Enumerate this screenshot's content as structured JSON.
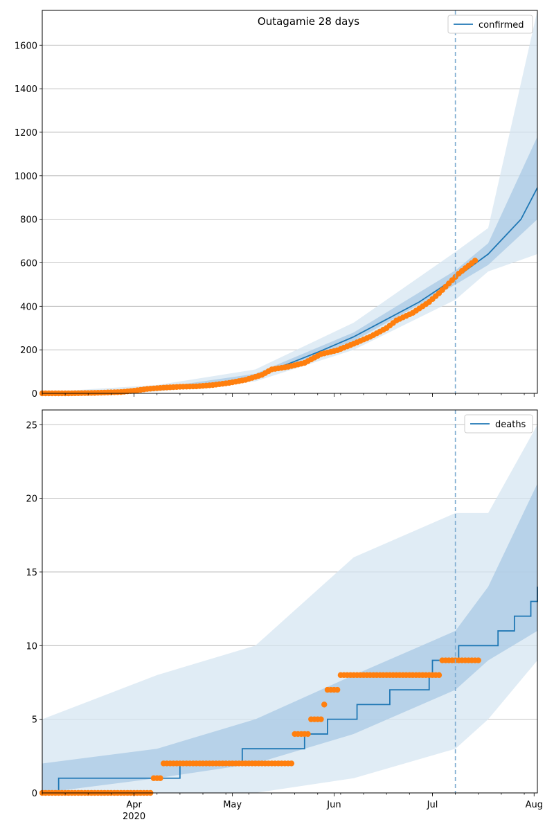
{
  "chart_data": [
    {
      "type": "line",
      "title": "Outagamie 28 days",
      "legend": {
        "label": "confirmed",
        "placement": "top-right"
      },
      "x_start": "2020-03-04",
      "x_end": "2020-08-02",
      "xlim": [
        "2020-03-04",
        "2020-08-02"
      ],
      "ylim": [
        0,
        1760
      ],
      "yticks": [
        0,
        200,
        400,
        600,
        800,
        1000,
        1200,
        1400,
        1600
      ],
      "grid": "horizontal",
      "forecast_start": "2020-07-08",
      "model_median": [
        [
          "2020-03-04",
          0
        ],
        [
          "2020-03-19",
          3
        ],
        [
          "2020-03-29",
          10
        ],
        [
          "2020-04-08",
          20
        ],
        [
          "2020-04-18",
          30
        ],
        [
          "2020-04-28",
          50
        ],
        [
          "2020-05-08",
          80
        ],
        [
          "2020-05-18",
          135
        ],
        [
          "2020-05-28",
          195
        ],
        [
          "2020-06-07",
          260
        ],
        [
          "2020-06-17",
          340
        ],
        [
          "2020-06-27",
          420
        ],
        [
          "2020-07-08",
          530
        ],
        [
          "2020-07-18",
          640
        ],
        [
          "2020-07-28",
          800
        ],
        [
          "2020-08-02",
          945
        ]
      ],
      "band_inner": [
        [
          "2020-03-04",
          0,
          0
        ],
        [
          "2020-04-08",
          15,
          25
        ],
        [
          "2020-05-08",
          70,
          90
        ],
        [
          "2020-06-07",
          240,
          280
        ],
        [
          "2020-07-08",
          500,
          565
        ],
        [
          "2020-07-18",
          590,
          690
        ],
        [
          "2020-08-02",
          800,
          1180
        ]
      ],
      "band_outer": [
        [
          "2020-03-04",
          0,
          5
        ],
        [
          "2020-04-08",
          8,
          38
        ],
        [
          "2020-05-08",
          55,
          110
        ],
        [
          "2020-06-07",
          200,
          325
        ],
        [
          "2020-07-08",
          430,
          650
        ],
        [
          "2020-07-18",
          560,
          760
        ],
        [
          "2020-08-02",
          640,
          1760
        ]
      ],
      "observed": [
        [
          "2020-03-04",
          0
        ],
        [
          "2020-03-12",
          0
        ],
        [
          "2020-03-20",
          2
        ],
        [
          "2020-03-28",
          6
        ],
        [
          "2020-04-01",
          12
        ],
        [
          "2020-04-05",
          20
        ],
        [
          "2020-04-10",
          26
        ],
        [
          "2020-04-15",
          30
        ],
        [
          "2020-04-20",
          32
        ],
        [
          "2020-04-25",
          38
        ],
        [
          "2020-04-30",
          48
        ],
        [
          "2020-05-05",
          62
        ],
        [
          "2020-05-10",
          85
        ],
        [
          "2020-05-13",
          110
        ],
        [
          "2020-05-18",
          122
        ],
        [
          "2020-05-23",
          140
        ],
        [
          "2020-05-28",
          180
        ],
        [
          "2020-06-02",
          198
        ],
        [
          "2020-06-07",
          228
        ],
        [
          "2020-06-12",
          260
        ],
        [
          "2020-06-17",
          300
        ],
        [
          "2020-06-20",
          335
        ],
        [
          "2020-06-25",
          370
        ],
        [
          "2020-06-30",
          420
        ],
        [
          "2020-07-03",
          460
        ],
        [
          "2020-07-06",
          505
        ],
        [
          "2020-07-09",
          550
        ],
        [
          "2020-07-11",
          575
        ],
        [
          "2020-07-14",
          610
        ]
      ]
    },
    {
      "type": "line",
      "title": "",
      "legend": {
        "label": "deaths",
        "placement": "top-right"
      },
      "x_start": "2020-03-04",
      "x_end": "2020-08-02",
      "xlim": [
        "2020-03-04",
        "2020-08-02"
      ],
      "ylim": [
        0,
        26
      ],
      "yticks": [
        0,
        5,
        10,
        15,
        20,
        25
      ],
      "grid": "horizontal",
      "forecast_start": "2020-07-08",
      "model_step": [
        [
          "2020-03-04",
          0
        ],
        [
          "2020-03-09",
          1
        ],
        [
          "2020-04-15",
          2
        ],
        [
          "2020-05-04",
          3
        ],
        [
          "2020-05-23",
          4
        ],
        [
          "2020-05-30",
          5
        ],
        [
          "2020-06-08",
          6
        ],
        [
          "2020-06-18",
          7
        ],
        [
          "2020-06-30",
          8
        ],
        [
          "2020-07-01",
          9
        ],
        [
          "2020-07-09",
          10
        ],
        [
          "2020-07-16",
          10
        ],
        [
          "2020-07-21",
          11
        ],
        [
          "2020-07-26",
          12
        ],
        [
          "2020-07-31",
          13
        ],
        [
          "2020-08-02",
          14
        ]
      ],
      "band_inner": [
        [
          "2020-03-04",
          0,
          2
        ],
        [
          "2020-04-08",
          1,
          3
        ],
        [
          "2020-05-08",
          2,
          5
        ],
        [
          "2020-06-07",
          4,
          8
        ],
        [
          "2020-07-08",
          7,
          11
        ],
        [
          "2020-07-18",
          9,
          14
        ],
        [
          "2020-08-02",
          11,
          21
        ]
      ],
      "band_outer": [
        [
          "2020-03-04",
          0,
          5
        ],
        [
          "2020-04-08",
          0,
          8
        ],
        [
          "2020-05-08",
          0,
          10
        ],
        [
          "2020-06-07",
          1,
          16
        ],
        [
          "2020-07-08",
          3,
          19
        ],
        [
          "2020-07-18",
          5,
          19
        ],
        [
          "2020-08-02",
          9,
          25
        ]
      ],
      "observed": [
        [
          "2020-03-04",
          0
        ],
        [
          "2020-04-06",
          0
        ],
        [
          "2020-04-07",
          1
        ],
        [
          "2020-04-10",
          2
        ],
        [
          "2020-05-20",
          4
        ],
        [
          "2020-05-25",
          5
        ],
        [
          "2020-05-29",
          6
        ],
        [
          "2020-05-30",
          7
        ],
        [
          "2020-06-03",
          8
        ],
        [
          "2020-07-04",
          9
        ],
        [
          "2020-07-15",
          9
        ]
      ]
    }
  ],
  "x_axis": {
    "ticks": [
      {
        "date": "2020-04-01",
        "label": "Apr",
        "sublabel": "2020"
      },
      {
        "date": "2020-05-01",
        "label": "May",
        "sublabel": ""
      },
      {
        "date": "2020-06-01",
        "label": "Jun",
        "sublabel": ""
      },
      {
        "date": "2020-07-01",
        "label": "Jul",
        "sublabel": ""
      },
      {
        "date": "2020-08-01",
        "label": "Aug",
        "sublabel": ""
      }
    ]
  },
  "colors": {
    "model": "#1f77b4",
    "observed": "#ff7f0e",
    "band_outer": "#d6e6f2",
    "band_inner": "#a9c9e4",
    "grid": "#b0b0b0",
    "forecast_line": "#7fadd1"
  }
}
